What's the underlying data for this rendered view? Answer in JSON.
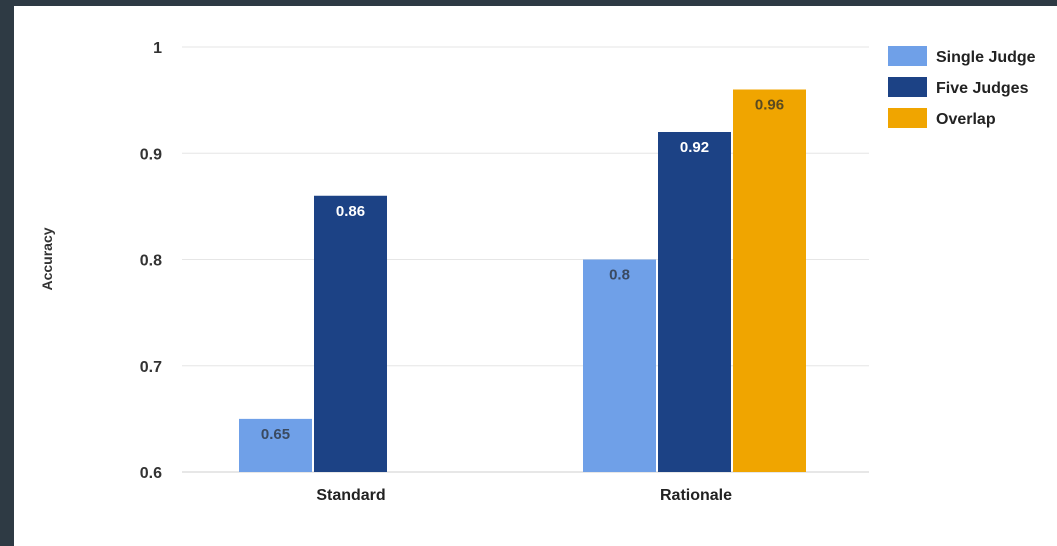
{
  "chart_data": {
    "type": "bar",
    "categories": [
      "Standard",
      "Rationale"
    ],
    "series": [
      {
        "name": "Single Judge",
        "values": [
          0.65,
          0.8
        ],
        "color": "#6fa0e8",
        "label_color": "#3a4a60"
      },
      {
        "name": "Five Judges",
        "values": [
          0.86,
          0.92
        ],
        "color": "#1c4285",
        "label_color": "#ffffff"
      },
      {
        "name": "Overlap",
        "values": [
          null,
          0.96
        ],
        "color": "#f0a500",
        "label_color": "#5a4a20"
      }
    ],
    "data_labels": [
      [
        "0.65",
        "0.8"
      ],
      [
        "0.86",
        "0.92"
      ],
      [
        "",
        "0.96"
      ]
    ],
    "ylabel": "Accuracy",
    "xlabel": "",
    "ylim": [
      0.6,
      1
    ],
    "yticks": [
      0.6,
      0.7,
      0.8,
      0.9,
      1
    ],
    "ytick_labels": [
      "0.6",
      "0.7",
      "0.8",
      "0.9",
      "1"
    ],
    "grid": true,
    "legend_position": "top-right"
  }
}
